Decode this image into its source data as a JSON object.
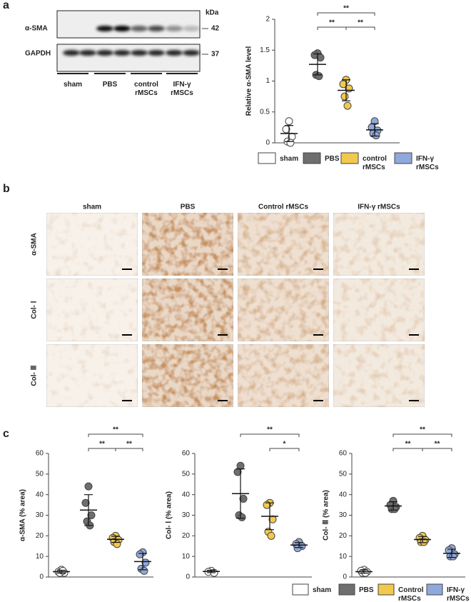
{
  "panel_labels": [
    "a",
    "b",
    "c"
  ],
  "blot": {
    "proteins": [
      "α-SMA",
      "GAPDH"
    ],
    "unit": "kDa",
    "sizes": [
      42,
      37
    ],
    "groups": [
      "sham",
      "PBS",
      "control rMSCs",
      "IFN-γ rMSCs"
    ]
  },
  "histology": {
    "columns": [
      "sham",
      "PBS",
      "Control rMSCs",
      "IFN-γ rMSCs"
    ],
    "rows": [
      "α-SMA",
      "Col- Ⅰ",
      "Col- Ⅲ"
    ]
  },
  "legend_c": [
    "sham",
    "PBS",
    "Control rMSCs",
    "IFN-γ rMSCs"
  ],
  "chart_data": [
    {
      "type": "dot",
      "ylabel": "Relative α-SMA level",
      "ylim": [
        0,
        2
      ],
      "yticks": [
        0,
        0.5,
        1,
        1.5,
        2
      ],
      "series": [
        {
          "name": "sham",
          "color": "#ffffff",
          "values": [
            0.35,
            0.22,
            0.1,
            0.02,
            0.0
          ],
          "mean": 0.15,
          "sd": 0.13
        },
        {
          "name": "PBS",
          "color": "#6e6e6e",
          "values": [
            1.45,
            1.42,
            1.38,
            1.1,
            1.08
          ],
          "mean": 1.27,
          "sd": 0.17
        },
        {
          "name": "control rMSCs",
          "color": "#f2c94c",
          "values": [
            1.02,
            0.95,
            0.88,
            0.75,
            0.6
          ],
          "mean": 0.85,
          "sd": 0.17
        },
        {
          "name": "IFN-γ rMSCs",
          "color": "#8fa9dc",
          "values": [
            0.35,
            0.25,
            0.2,
            0.15,
            0.12
          ],
          "mean": 0.21,
          "sd": 0.1
        }
      ],
      "comparisons": [
        {
          "groups": [
            1,
            2
          ],
          "label": "**"
        },
        {
          "groups": [
            2,
            3
          ],
          "label": "**"
        },
        {
          "groups": [
            1,
            3
          ],
          "label": "**"
        }
      ]
    },
    {
      "type": "dot",
      "ylabel": "α-SMA (% area)",
      "ylim": [
        0,
        60
      ],
      "yticks": [
        0,
        10,
        20,
        30,
        40,
        50,
        60
      ],
      "series": [
        {
          "color": "#ffffff",
          "values": [
            3.5,
            2.5,
            2,
            2,
            3
          ],
          "mean": 2.6,
          "sd": 0.7
        },
        {
          "color": "#6e6e6e",
          "values": [
            44,
            36,
            30,
            27,
            25
          ],
          "mean": 32.5,
          "sd": 7.5
        },
        {
          "color": "#f2c94c",
          "values": [
            20,
            19,
            18,
            17,
            16
          ],
          "mean": 18.3,
          "sd": 1.5
        },
        {
          "color": "#8fa9dc",
          "values": [
            12,
            11,
            7,
            4,
            3
          ],
          "mean": 7.5,
          "sd": 4
        }
      ],
      "comparisons": [
        {
          "groups": [
            1,
            2
          ],
          "label": "**"
        },
        {
          "groups": [
            2,
            3
          ],
          "label": "**"
        },
        {
          "groups": [
            1,
            3
          ],
          "label": "**"
        }
      ]
    },
    {
      "type": "dot",
      "ylabel": "Col- Ⅰ (% area)",
      "ylim": [
        0,
        60
      ],
      "yticks": [
        0,
        10,
        20,
        30,
        40,
        50,
        60
      ],
      "series": [
        {
          "color": "#ffffff",
          "values": [
            3,
            2.5,
            2
          ],
          "mean": 2.7,
          "sd": 0.6
        },
        {
          "color": "#6e6e6e",
          "values": [
            54,
            51,
            38,
            30,
            29
          ],
          "mean": 40.5,
          "sd": 12
        },
        {
          "color": "#f2c94c",
          "values": [
            36,
            35,
            28,
            22,
            20
          ],
          "mean": 29.5,
          "sd": 6.5
        },
        {
          "color": "#8fa9dc",
          "values": [
            17,
            16,
            15,
            14
          ],
          "mean": 15.5,
          "sd": 1.2
        }
      ],
      "comparisons": [
        {
          "groups": [
            2,
            3
          ],
          "label": "*"
        },
        {
          "groups": [
            1,
            3
          ],
          "label": "**"
        }
      ]
    },
    {
      "type": "dot",
      "ylabel": "Col- Ⅲ (% area)",
      "ylim": [
        0,
        60
      ],
      "yticks": [
        0,
        10,
        20,
        30,
        40,
        50,
        60
      ],
      "series": [
        {
          "color": "#ffffff",
          "values": [
            3.5,
            3,
            2.5,
            2,
            2
          ],
          "mean": 2.6,
          "sd": 0.8
        },
        {
          "color": "#6e6e6e",
          "values": [
            37,
            35,
            34,
            33,
            33
          ],
          "mean": 34.5,
          "sd": 2
        },
        {
          "color": "#f2c94c",
          "values": [
            20,
            19,
            18,
            17,
            17
          ],
          "mean": 18.2,
          "sd": 1.5
        },
        {
          "color": "#8fa9dc",
          "values": [
            14,
            13,
            11,
            10,
            10
          ],
          "mean": 11.5,
          "sd": 2
        }
      ],
      "comparisons": [
        {
          "groups": [
            1,
            2
          ],
          "label": "**"
        },
        {
          "groups": [
            2,
            3
          ],
          "label": "**"
        },
        {
          "groups": [
            1,
            3
          ],
          "label": "**"
        }
      ]
    }
  ]
}
